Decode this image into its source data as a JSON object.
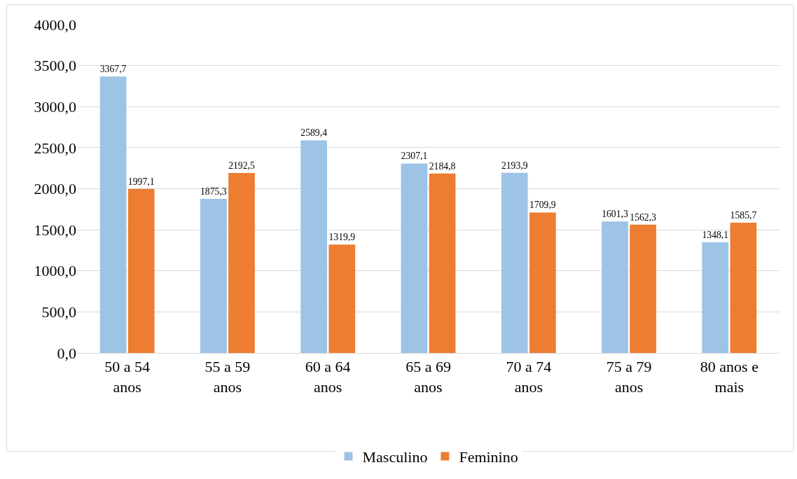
{
  "chart_data": {
    "type": "bar",
    "categories": [
      "50 a 54 anos",
      "55 a 59 anos",
      "60 a 64 anos",
      "65 a 69 anos",
      "70 a 74 anos",
      "75 a 79 anos",
      "80 anos e mais"
    ],
    "series": [
      {
        "name": "Masculino",
        "color": "#9dc3e6",
        "values": [
          3367.7,
          1875.3,
          2589.4,
          2307.1,
          2193.9,
          1601.3,
          1348.1
        ],
        "value_labels": [
          "3367,7",
          "1875,3",
          "2589,4",
          "2307,1",
          "2193,9",
          "1601,3",
          "1348,1"
        ]
      },
      {
        "name": "Feminino",
        "color": "#ed7d31",
        "values": [
          1997.1,
          2192.5,
          1319.9,
          2184.8,
          1709.9,
          1562.3,
          1585.7
        ],
        "value_labels": [
          "1997,1",
          "2192,5",
          "1319,9",
          "2184,8",
          "1709,9",
          "1562,3",
          "1585,7"
        ]
      }
    ],
    "ylim": [
      0,
      4000
    ],
    "yticks": [
      {
        "value": 0,
        "label": "0,0"
      },
      {
        "value": 500,
        "label": "500,0"
      },
      {
        "value": 1000,
        "label": "1000,0"
      },
      {
        "value": 1500,
        "label": "1500,0"
      },
      {
        "value": 2000,
        "label": "2000,0"
      },
      {
        "value": 2500,
        "label": "2500,0"
      },
      {
        "value": 3000,
        "label": "3000,0"
      },
      {
        "value": 3500,
        "label": "3500,0"
      },
      {
        "value": 4000,
        "label": "4000,0"
      }
    ],
    "grid": "y",
    "legend": "bottom"
  }
}
